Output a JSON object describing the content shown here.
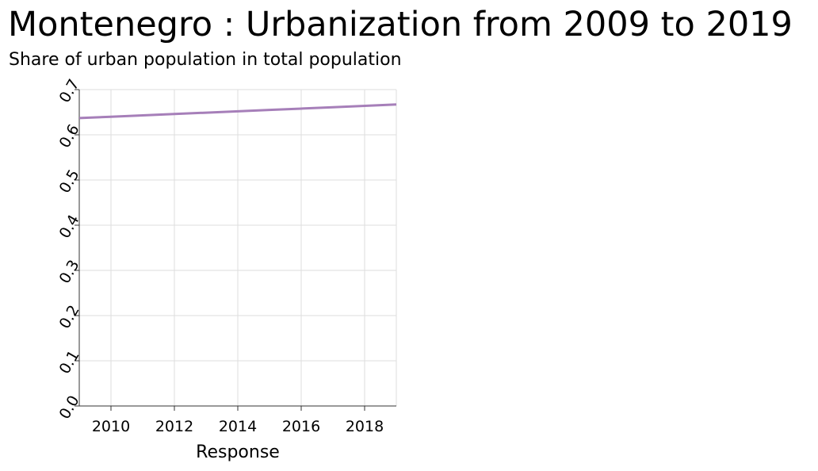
{
  "chart_data": {
    "type": "line",
    "title": "Montenegro : Urbanization from 2009 to 2019",
    "subtitle": "Share of urban population in total population",
    "xlabel": "Response",
    "ylabel": "",
    "xlim": [
      2009,
      2019
    ],
    "ylim": [
      0,
      0.7
    ],
    "x_ticks": [
      "2010",
      "2012",
      "2014",
      "2016",
      "2018"
    ],
    "y_ticks": [
      "0.0",
      "0.1",
      "0.2",
      "0.3",
      "0.4",
      "0.5",
      "0.6",
      "0.7"
    ],
    "grid": true,
    "legend": "none",
    "colors": {
      "series": "#a67fb9",
      "grid": "#dddddd",
      "axis": "#333333"
    },
    "series": [
      {
        "x": [
          2009,
          2010,
          2011,
          2012,
          2013,
          2014,
          2015,
          2016,
          2017,
          2018,
          2019
        ],
        "values": [
          0.637,
          0.64,
          0.643,
          0.646,
          0.649,
          0.652,
          0.655,
          0.658,
          0.661,
          0.664,
          0.667
        ]
      }
    ]
  }
}
